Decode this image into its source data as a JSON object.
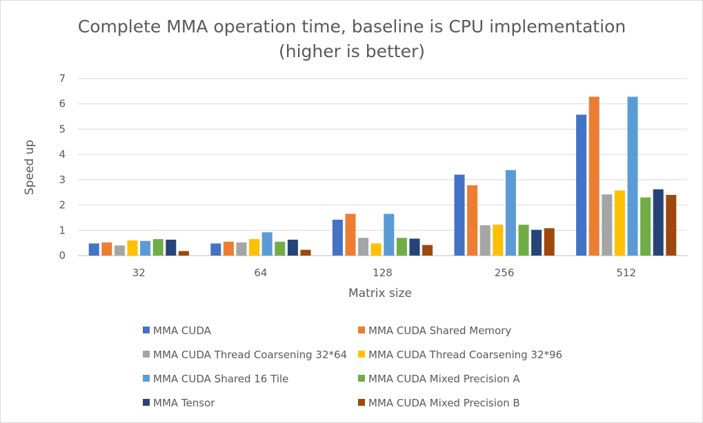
{
  "chart_data": {
    "type": "bar",
    "title_line1": "Complete MMA operation time, baseline is CPU implementation",
    "title_line2": "(higher is better)",
    "xlabel": "Matrix size",
    "ylabel": "Speed up",
    "ylim": [
      0,
      7
    ],
    "yticks": [
      "0",
      "1",
      "2",
      "3",
      "4",
      "5",
      "6",
      "7"
    ],
    "grid": true,
    "legend_position": "bottom",
    "categories": [
      "32",
      "64",
      "128",
      "256",
      "512"
    ],
    "series": [
      {
        "name": "MMA CUDA",
        "color": "#4472c4",
        "values": [
          0.48,
          0.48,
          1.42,
          3.2,
          5.57
        ]
      },
      {
        "name": "MMA CUDA Shared Memory",
        "color": "#ed7d31",
        "values": [
          0.52,
          0.55,
          1.65,
          2.78,
          6.28
        ]
      },
      {
        "name": "MMA CUDA Thread Coarsening 32*64",
        "color": "#a5a5a5",
        "values": [
          0.4,
          0.52,
          0.7,
          1.2,
          2.42
        ]
      },
      {
        "name": "MMA CUDA Thread Coarsening 32*96",
        "color": "#ffc000",
        "values": [
          0.6,
          0.65,
          0.48,
          1.22,
          2.57
        ]
      },
      {
        "name": "MMA CUDA Shared 16 Tile",
        "color": "#5b9bd5",
        "values": [
          0.58,
          0.92,
          1.65,
          3.38,
          6.28
        ]
      },
      {
        "name": "MMA CUDA Mixed Precision A",
        "color": "#70ad47",
        "values": [
          0.65,
          0.55,
          0.7,
          1.22,
          2.3
        ]
      },
      {
        "name": "MMA Tensor",
        "color": "#264478",
        "values": [
          0.63,
          0.63,
          0.67,
          1.02,
          2.62
        ]
      },
      {
        "name": "MMA CUDA Mixed Precision B",
        "color": "#9e480e",
        "values": [
          0.18,
          0.23,
          0.42,
          1.08,
          2.4
        ]
      }
    ]
  }
}
